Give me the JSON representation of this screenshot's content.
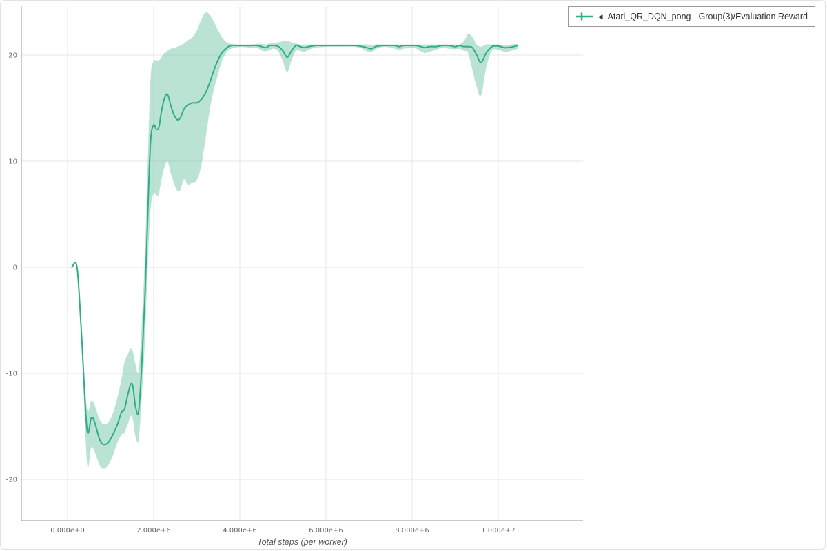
{
  "legend": {
    "collapse_icon": "◀"
  },
  "colors": {
    "line": "#2fad88",
    "band": "rgba(102,194,160,0.45)",
    "grid": "#e6e6e6",
    "axis": "#9a9a9a",
    "tick_text": "#666666",
    "legend_border": "#999999",
    "legend_text": "#333333"
  },
  "chart_data": {
    "type": "line",
    "title": "",
    "xlabel": "Total steps (per worker)",
    "ylabel": "",
    "xlim": [
      -1100000,
      12000000
    ],
    "ylim": [
      -24,
      24.6
    ],
    "grid": true,
    "legend_position": "top-right",
    "x_ticks_e6": [
      0,
      2,
      4,
      6,
      8,
      10
    ],
    "x_tick_labels": [
      "0.000e+0",
      "2.000e+6",
      "4.000e+6",
      "6.000e+6",
      "8.000e+6",
      "1.000e+7"
    ],
    "y_ticks": [
      -20,
      -10,
      0,
      10,
      20
    ],
    "y_tick_labels": [
      "-20",
      "-10",
      "0",
      "10",
      "20"
    ],
    "series": [
      {
        "name": "Atari_QR_DQN_pong - Group(3)/Evaluation Reward",
        "color": "#2fad88",
        "band_color": "rgba(102,194,160,0.45)",
        "x_unit": "steps ×1e6",
        "x_e6": [
          0.1,
          0.22,
          0.32,
          0.45,
          0.55,
          0.62,
          0.75,
          0.85,
          0.95,
          1.05,
          1.15,
          1.25,
          1.32,
          1.4,
          1.47,
          1.52,
          1.58,
          1.65,
          1.72,
          1.8,
          1.87,
          1.93,
          2.0,
          2.06,
          2.12,
          2.18,
          2.25,
          2.32,
          2.4,
          2.48,
          2.55,
          2.62,
          2.7,
          2.8,
          2.9,
          3.0,
          3.1,
          3.2,
          3.3,
          3.4,
          3.5,
          3.6,
          3.7,
          3.8,
          3.95,
          4.1,
          4.25,
          4.4,
          4.5,
          4.6,
          4.7,
          4.8,
          4.9,
          5.0,
          5.1,
          5.2,
          5.3,
          5.4,
          5.5,
          5.6,
          5.75,
          5.9,
          6.1,
          6.3,
          6.5,
          6.7,
          6.85,
          6.95,
          7.05,
          7.15,
          7.3,
          7.45,
          7.6,
          7.7,
          7.8,
          7.95,
          8.1,
          8.2,
          8.3,
          8.4,
          8.55,
          8.7,
          8.85,
          9.0,
          9.1,
          9.2,
          9.3,
          9.4,
          9.5,
          9.6,
          9.72,
          9.85,
          10.0,
          10.15,
          10.3,
          10.45
        ],
        "mean": [
          0.0,
          0.0,
          -6.0,
          -15.2,
          -14.2,
          -14.5,
          -16.3,
          -16.7,
          -16.5,
          -15.8,
          -14.9,
          -13.7,
          -13.4,
          -12.0,
          -11.0,
          -11.3,
          -13.2,
          -13.6,
          -9.5,
          -2.5,
          6.0,
          12.0,
          13.4,
          13.0,
          13.2,
          14.7,
          15.9,
          16.3,
          15.2,
          14.3,
          13.9,
          14.1,
          14.9,
          15.3,
          15.5,
          15.5,
          15.8,
          16.4,
          17.4,
          18.6,
          19.6,
          20.3,
          20.7,
          20.9,
          20.9,
          20.9,
          20.9,
          20.9,
          20.8,
          20.7,
          20.9,
          20.9,
          20.8,
          20.4,
          19.8,
          20.4,
          20.9,
          20.8,
          20.7,
          20.8,
          20.9,
          20.9,
          20.9,
          20.9,
          20.9,
          20.9,
          20.8,
          20.7,
          20.6,
          20.8,
          20.9,
          20.9,
          20.9,
          20.8,
          20.9,
          20.9,
          20.9,
          20.8,
          20.7,
          20.8,
          20.8,
          20.9,
          20.9,
          20.8,
          20.9,
          20.8,
          20.8,
          20.7,
          20.0,
          19.3,
          20.2,
          20.8,
          20.85,
          20.7,
          20.75,
          20.9
        ],
        "band_lower": [
          0.0,
          0.0,
          -6.5,
          -18.3,
          -17.0,
          -17.3,
          -18.7,
          -19.0,
          -18.6,
          -17.8,
          -16.6,
          -15.8,
          -15.6,
          -14.8,
          -14.0,
          -14.4,
          -16.0,
          -16.3,
          -12.5,
          -6.5,
          1.0,
          5.5,
          7.0,
          6.8,
          6.9,
          8.3,
          9.4,
          10.0,
          8.8,
          7.8,
          7.2,
          7.3,
          8.3,
          7.8,
          8.0,
          8.2,
          9.5,
          12.0,
          14.8,
          16.8,
          18.3,
          19.6,
          20.3,
          20.6,
          20.75,
          20.75,
          20.7,
          20.7,
          20.45,
          20.35,
          20.5,
          20.6,
          20.3,
          19.4,
          18.4,
          19.5,
          20.4,
          20.4,
          20.3,
          20.5,
          20.7,
          20.75,
          20.8,
          20.8,
          20.8,
          20.75,
          20.6,
          20.35,
          20.3,
          20.55,
          20.75,
          20.75,
          20.6,
          20.5,
          20.6,
          20.7,
          20.6,
          20.35,
          20.2,
          20.3,
          20.5,
          20.7,
          20.6,
          20.55,
          20.6,
          20.4,
          20.2,
          18.6,
          17.0,
          16.2,
          18.8,
          20.4,
          20.5,
          20.3,
          20.4,
          20.6
        ],
        "band_upper": [
          0.0,
          0.0,
          -5.5,
          -13.2,
          -12.6,
          -12.9,
          -14.4,
          -14.8,
          -14.6,
          -13.8,
          -12.4,
          -10.6,
          -9.0,
          -8.2,
          -7.6,
          -8.0,
          -9.2,
          -9.8,
          -5.5,
          1.5,
          11.0,
          18.0,
          19.4,
          19.5,
          19.5,
          19.8,
          20.2,
          20.4,
          20.6,
          20.7,
          20.8,
          20.9,
          21.1,
          21.4,
          21.7,
          22.3,
          23.3,
          24.0,
          23.8,
          23.1,
          22.3,
          21.6,
          21.2,
          21.05,
          21.0,
          21.0,
          21.0,
          21.05,
          21.05,
          21.0,
          21.1,
          21.15,
          21.2,
          21.3,
          21.35,
          21.2,
          21.1,
          21.0,
          21.0,
          21.0,
          21.0,
          21.0,
          21.0,
          21.0,
          21.0,
          21.0,
          21.0,
          21.0,
          20.95,
          21.0,
          21.0,
          21.0,
          21.0,
          21.0,
          21.0,
          21.0,
          21.0,
          21.0,
          21.0,
          21.0,
          21.0,
          21.0,
          21.0,
          21.0,
          21.0,
          21.3,
          22.0,
          21.7,
          21.0,
          20.8,
          21.0,
          21.0,
          21.0,
          20.95,
          21.0,
          21.05
        ]
      }
    ]
  }
}
